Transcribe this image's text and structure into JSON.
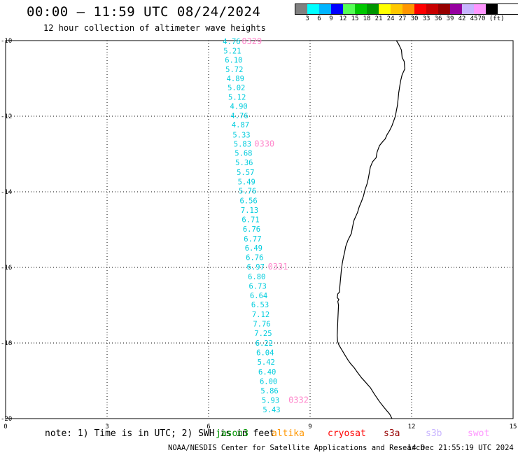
{
  "title": "00:00 – 11:59 UTC 08/24/2024",
  "subtitle": "12 hour collection of altimeter wave heights",
  "legend": {
    "colors": [
      "#808080",
      "#00ffff",
      "#00b4ff",
      "#0000ff",
      "#55ff55",
      "#00c800",
      "#009600",
      "#ffff00",
      "#ffc800",
      "#ff9600",
      "#ff0000",
      "#c80000",
      "#960000",
      "#9600a0",
      "#c8b4ff",
      "#ff96ff",
      "#000000"
    ],
    "labels": [
      "3",
      "6",
      "9",
      "12",
      "15",
      "18",
      "21",
      "24",
      "27",
      "30",
      "33",
      "36",
      "39",
      "42",
      "45",
      "70 (ft)"
    ]
  },
  "chart_data": {
    "type": "scatter",
    "xlim": [
      0,
      15
    ],
    "ylim": [
      -20,
      -10
    ],
    "x_ticks": [
      "0",
      "3",
      "6",
      "9",
      "12",
      "15"
    ],
    "y_ticks": [
      "-10",
      "-12",
      "-14",
      "-16",
      "-18",
      "-20"
    ],
    "grid": true,
    "series": [
      {
        "points": [
          {
            "x": 6.42,
            "y": -10.02,
            "label": "4.76"
          },
          {
            "x": 6.44,
            "y": -10.27,
            "label": "5.21"
          },
          {
            "x": 6.48,
            "y": -10.51,
            "label": "6.10"
          },
          {
            "x": 6.5,
            "y": -10.76,
            "label": "5.72"
          },
          {
            "x": 6.53,
            "y": -11.0,
            "label": "4.89"
          },
          {
            "x": 6.56,
            "y": -11.24,
            "label": "5.02"
          },
          {
            "x": 6.58,
            "y": -11.49,
            "label": "5.12"
          },
          {
            "x": 6.63,
            "y": -11.73,
            "label": "4.90"
          },
          {
            "x": 6.65,
            "y": -11.98,
            "label": "4.76"
          },
          {
            "x": 6.68,
            "y": -12.22,
            "label": "4.87"
          },
          {
            "x": 6.71,
            "y": -12.49,
            "label": "5.33"
          },
          {
            "x": 6.74,
            "y": -12.73,
            "label": "5.83"
          },
          {
            "x": 6.77,
            "y": -12.97,
            "label": "5.68"
          },
          {
            "x": 6.79,
            "y": -13.22,
            "label": "5.36"
          },
          {
            "x": 6.83,
            "y": -13.48,
            "label": "5.57"
          },
          {
            "x": 6.86,
            "y": -13.73,
            "label": "5.49"
          },
          {
            "x": 6.89,
            "y": -13.97,
            "label": "5.76"
          },
          {
            "x": 6.92,
            "y": -14.23,
            "label": "6.56"
          },
          {
            "x": 6.95,
            "y": -14.48,
            "label": "7.13"
          },
          {
            "x": 6.98,
            "y": -14.73,
            "label": "6.71"
          },
          {
            "x": 7.01,
            "y": -14.98,
            "label": "6.76"
          },
          {
            "x": 7.04,
            "y": -15.24,
            "label": "6.77"
          },
          {
            "x": 7.07,
            "y": -15.48,
            "label": "6.49"
          },
          {
            "x": 7.1,
            "y": -15.73,
            "label": "6.76"
          },
          {
            "x": 7.13,
            "y": -15.98,
            "label": "6.97"
          },
          {
            "x": 7.16,
            "y": -16.24,
            "label": "6.80"
          },
          {
            "x": 7.19,
            "y": -16.49,
            "label": "6.73"
          },
          {
            "x": 7.22,
            "y": -16.74,
            "label": "6.64"
          },
          {
            "x": 7.26,
            "y": -16.98,
            "label": "6.53"
          },
          {
            "x": 7.28,
            "y": -17.24,
            "label": "7.12"
          },
          {
            "x": 7.31,
            "y": -17.49,
            "label": "7.76"
          },
          {
            "x": 7.35,
            "y": -17.74,
            "label": "7.25"
          },
          {
            "x": 7.38,
            "y": -18.0,
            "label": "6.22"
          },
          {
            "x": 7.41,
            "y": -18.25,
            "label": "6.04"
          },
          {
            "x": 7.44,
            "y": -18.5,
            "label": "5.42"
          },
          {
            "x": 7.47,
            "y": -18.76,
            "label": "6.40"
          },
          {
            "x": 7.51,
            "y": -19.01,
            "label": "6.00"
          },
          {
            "x": 7.54,
            "y": -19.26,
            "label": "5.86"
          },
          {
            "x": 7.57,
            "y": -19.51,
            "label": "5.93"
          },
          {
            "x": 7.6,
            "y": -19.76,
            "label": "5.43"
          }
        ]
      }
    ],
    "time_labels": [
      {
        "x": 6.98,
        "y": -10.02,
        "label": "0329"
      },
      {
        "x": 7.35,
        "y": -12.73,
        "label": "0330"
      },
      {
        "x": 7.75,
        "y": -15.98,
        "label": "0331"
      },
      {
        "x": 8.36,
        "y": -19.51,
        "label": "0332"
      }
    ],
    "point_color": "#00ccdd",
    "time_label_color": "#ff88cc"
  },
  "coastline_color": "#000000",
  "note": "note: 1) Time is in UTC; 2) SWH is in feet",
  "satellites": [
    {
      "name": "jason3",
      "color": "#009600"
    },
    {
      "name": "altika",
      "color": "#ff9600"
    },
    {
      "name": "cryosat",
      "color": "#ff0000"
    },
    {
      "name": "s3a",
      "color": "#960000"
    },
    {
      "name": "s3b",
      "color": "#c8b4ff"
    },
    {
      "name": "swot",
      "color": "#ff96ff"
    }
  ],
  "credit": "NOAA/NESDIS Center for Satellite Applications and Research",
  "generated": "14 Dec 21:55:19 UTC 2024"
}
